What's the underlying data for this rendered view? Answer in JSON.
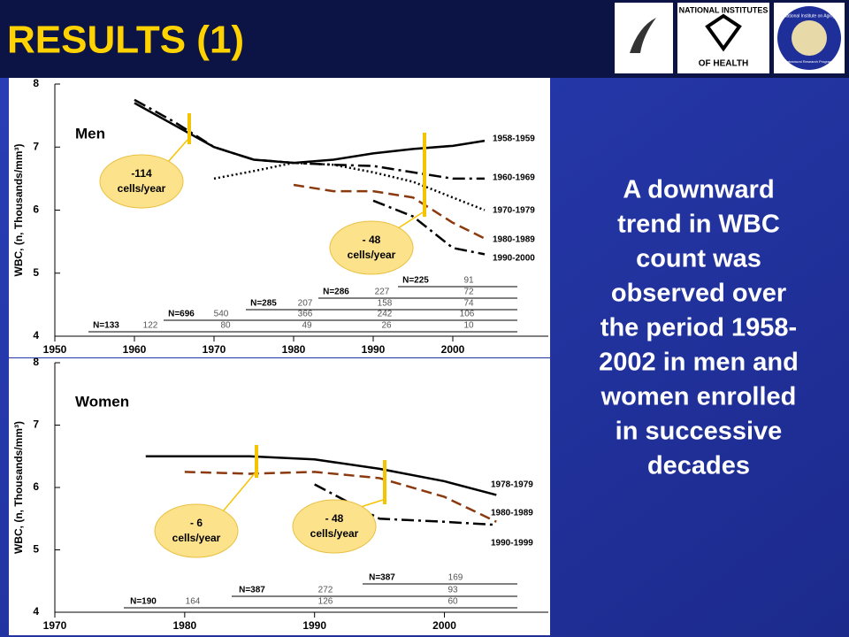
{
  "slide": {
    "title": "RESULTS (1)",
    "body_lines": [
      "A downward",
      "trend in WBC",
      "count was",
      "observed over",
      "the period 1958-",
      "2002 in men and",
      "women enrolled",
      "in successive",
      "decades"
    ],
    "logos": [
      "NATIONAL INSTITUTES",
      "OF HEALTH",
      "National Institute on Aging",
      "Intramural Research Program"
    ]
  },
  "chart_data": [
    {
      "type": "line",
      "title": "Men",
      "y_label": "WBC, (n, Thousands/mm³)",
      "x": [
        1960,
        1965,
        1970,
        1975,
        1980,
        1985,
        1990,
        1995,
        2000,
        2004
      ],
      "series": [
        {
          "name": "1958-1959",
          "color": "#000000",
          "style": "solid",
          "values": [
            7.7,
            7.35,
            7.0,
            6.8,
            6.75,
            6.8,
            6.9,
            6.97,
            7.02,
            7.1
          ]
        },
        {
          "name": "1960-1969",
          "color": "#000000",
          "style": "dashdot",
          "values": [
            7.75,
            7.4,
            7.0,
            6.8,
            6.75,
            6.72,
            6.7,
            6.6,
            6.5,
            6.5
          ]
        },
        {
          "name": "1970-1979",
          "color": "#000000",
          "style": "dotted",
          "values": [
            null,
            null,
            6.5,
            6.62,
            6.75,
            6.72,
            6.6,
            6.45,
            6.2,
            6.0
          ]
        },
        {
          "name": "1980-1989",
          "color": "#8b3a0f",
          "style": "dashed",
          "values": [
            null,
            null,
            null,
            null,
            6.4,
            6.3,
            6.3,
            6.2,
            5.8,
            5.55
          ]
        },
        {
          "name": "1990-2000",
          "color": "#000000",
          "style": "dashdot",
          "values": [
            null,
            null,
            null,
            null,
            null,
            null,
            6.15,
            5.9,
            5.4,
            5.3
          ]
        }
      ],
      "xlim": [
        1950,
        2012
      ],
      "xticks": [
        1950,
        1960,
        1970,
        1980,
        1990,
        2000
      ],
      "ylim": [
        4,
        8
      ],
      "yticks": [
        4,
        5,
        6,
        7,
        8
      ],
      "annotations": [
        [
          "-114",
          "cells/year"
        ],
        [
          "- 48",
          "cells/year"
        ]
      ],
      "n_table": [
        [
          "N=133",
          "122",
          "80",
          "49",
          "26",
          "10"
        ],
        [
          "N=696",
          "540",
          "366",
          "242",
          "106"
        ],
        [
          "N=285",
          "207",
          "158",
          "74"
        ],
        [
          "N=286",
          "227",
          "72"
        ],
        [
          "N=225",
          "91"
        ]
      ]
    },
    {
      "type": "line",
      "title": "Women",
      "y_label": "WBC, (n, Thousands/mm³)",
      "x": [
        1977,
        1980,
        1985,
        1990,
        1995,
        2000,
        2004
      ],
      "series": [
        {
          "name": "1978-1979",
          "color": "#000000",
          "style": "solid",
          "values": [
            6.5,
            6.5,
            6.5,
            6.45,
            6.3,
            6.1,
            5.88
          ]
        },
        {
          "name": "1980-1989",
          "color": "#8b3a0f",
          "style": "dashed",
          "values": [
            null,
            6.25,
            6.22,
            6.25,
            6.15,
            5.85,
            5.45
          ]
        },
        {
          "name": "1990-1999",
          "color": "#000000",
          "style": "dashdot",
          "values": [
            null,
            null,
            null,
            6.05,
            5.5,
            5.45,
            5.4
          ]
        }
      ],
      "xlim": [
        1970,
        2008
      ],
      "xticks": [
        1970,
        1980,
        1990,
        2000
      ],
      "ylim": [
        4,
        8
      ],
      "yticks": [
        4,
        5,
        6,
        7,
        8
      ],
      "annotations": [
        [
          "- 6",
          "cells/year"
        ],
        [
          "- 48",
          "cells/year"
        ]
      ],
      "n_table": [
        [
          "N=190",
          "164",
          "126",
          "60"
        ],
        [
          "N=387",
          "272",
          "93"
        ],
        [
          "N=387",
          "169"
        ]
      ]
    }
  ]
}
